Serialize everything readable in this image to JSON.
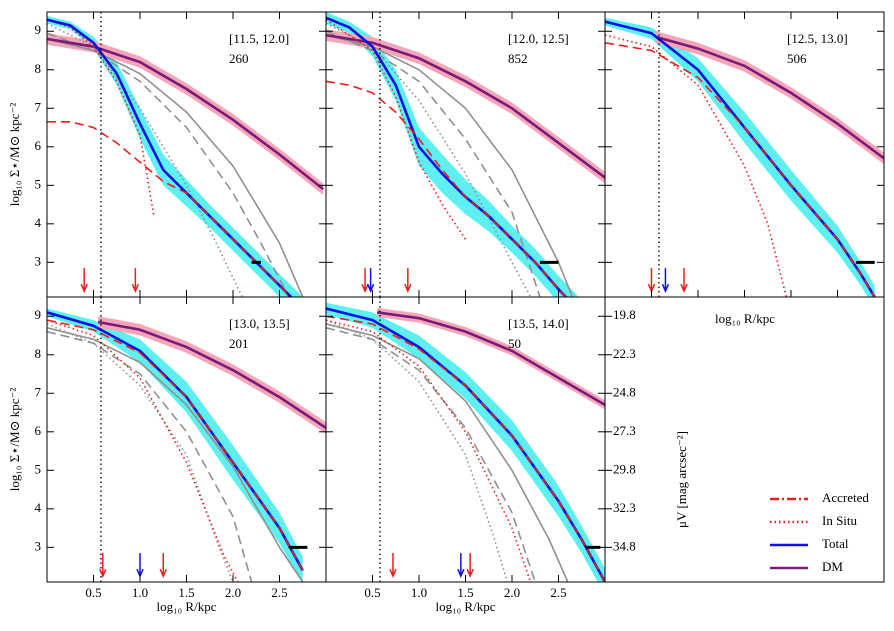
{
  "chart_data": {
    "type": "panels",
    "xlabel": "log₁₀ R/kpc",
    "ylabel": "log₁₀ Σ⋆/M⊙ kpc⁻²",
    "xlim": [
      0,
      3.0
    ],
    "ylim": [
      2.1,
      9.5
    ],
    "xticks": [
      0.5,
      {
        "value": 1,
        "label": "1.0"
      },
      1.5,
      {
        "value": 2,
        "label": "2.0"
      },
      2.5
    ],
    "yticks": [
      3,
      4,
      5,
      6,
      7,
      8,
      9
    ],
    "vline": 0.58,
    "panels": [
      {
        "type": "line",
        "label": "[11.5, 12.0]",
        "count": "260",
        "arrows": [
          {
            "x": 0.4,
            "color": "#e8201c"
          },
          {
            "x": 0.95,
            "color": "#e8201c"
          }
        ],
        "bar": [
          2.2,
          2.3
        ],
        "series": [
          {
            "name": "Accreted",
            "color": "#e8201c",
            "style": "dashed",
            "x": [
              0,
              0.25,
              0.5,
              0.75,
              1.0,
              1.25,
              1.5,
              1.75,
              2.0,
              2.25,
              2.5,
              2.75
            ],
            "values": [
              6.65,
              6.65,
              6.5,
              6.1,
              5.6,
              5.1,
              4.8,
              4.2,
              3.6,
              3.0,
              2.4,
              1.8
            ]
          },
          {
            "name": "In Situ",
            "color": "#e8201c",
            "style": "dotted",
            "x": [
              0,
              0.25,
              0.5,
              0.75,
              1.0,
              1.15
            ],
            "values": [
              9.3,
              9.1,
              8.6,
              7.7,
              6.3,
              4.2
            ]
          },
          {
            "name": "Total",
            "color": "#1010e0",
            "style": "solid",
            "band": "#5ef0f0",
            "x": [
              0,
              0.25,
              0.5,
              0.75,
              1.0,
              1.25,
              1.5,
              1.75,
              2.0,
              2.25,
              2.5,
              2.75
            ],
            "values": [
              9.3,
              9.15,
              8.7,
              7.9,
              6.6,
              5.4,
              4.8,
              4.2,
              3.6,
              3.0,
              2.4,
              1.8
            ],
            "spread": [
              0.1,
              0.1,
              0.15,
              0.3,
              0.4,
              0.4,
              0.35,
              0.3,
              0.3,
              0.3,
              0.3,
              0.3
            ]
          },
          {
            "name": "DM",
            "color": "#7a1a7a",
            "style": "solid",
            "band": "#f4a6b8",
            "x": [
              0,
              0.5,
              1.0,
              1.5,
              2.0,
              2.5,
              2.97
            ],
            "values": [
              8.8,
              8.6,
              8.2,
              7.5,
              6.7,
              5.8,
              4.9
            ],
            "spread": [
              0.15,
              0.15,
              0.15,
              0.15,
              0.15,
              0.15,
              0.15
            ]
          },
          {
            "color": "#909090",
            "style": "dashed",
            "x": [
              0,
              0.5,
              1.0,
              1.5,
              2.0,
              2.3,
              2.6
            ],
            "values": [
              8.95,
              8.5,
              7.7,
              6.5,
              4.8,
              3.5,
              2.1
            ]
          },
          {
            "color": "#909090",
            "style": "solid",
            "x": [
              0,
              0.5,
              1.0,
              1.5,
              2.0,
              2.5,
              2.75
            ],
            "values": [
              8.8,
              8.5,
              7.9,
              6.9,
              5.5,
              3.5,
              2.1
            ]
          },
          {
            "color": "#909090",
            "style": "dotted",
            "x": [
              0,
              0.5,
              1.0,
              1.5,
              1.8,
              2.1
            ],
            "values": [
              9.2,
              8.6,
              7.0,
              5.0,
              3.6,
              2.1
            ]
          }
        ]
      },
      {
        "type": "line",
        "label": "[12.0, 12.5]",
        "count": "852",
        "arrows": [
          {
            "x": 0.42,
            "color": "#e8201c"
          },
          {
            "x": 0.48,
            "color": "#1010e0"
          },
          {
            "x": 0.88,
            "color": "#e8201c"
          }
        ],
        "bar": [
          2.3,
          2.5
        ],
        "series": [
          {
            "name": "Accreted",
            "color": "#e8201c",
            "style": "dashed",
            "x": [
              0,
              0.25,
              0.5,
              0.75,
              1.0,
              1.25,
              1.5,
              1.75,
              2.0,
              2.25,
              2.5,
              2.7
            ],
            "values": [
              7.7,
              7.6,
              7.4,
              6.9,
              6.2,
              5.4,
              4.7,
              4.2,
              3.6,
              3.0,
              2.3,
              1.8
            ]
          },
          {
            "name": "In Situ",
            "color": "#e8201c",
            "style": "dotted",
            "x": [
              0,
              0.5,
              0.75,
              1.0,
              1.25,
              1.5
            ],
            "values": [
              9.3,
              8.5,
              7.3,
              5.6,
              4.5,
              3.6
            ]
          },
          {
            "name": "Total",
            "color": "#1010e0",
            "style": "solid",
            "band": "#5ef0f0",
            "x": [
              0,
              0.25,
              0.5,
              0.75,
              1.0,
              1.25,
              1.5,
              1.75,
              2.0,
              2.25,
              2.5,
              2.7
            ],
            "values": [
              9.35,
              9.1,
              8.6,
              7.6,
              6.0,
              5.3,
              4.7,
              4.2,
              3.6,
              3.0,
              2.3,
              1.8
            ],
            "spread": [
              0.15,
              0.15,
              0.25,
              0.4,
              0.5,
              0.5,
              0.45,
              0.4,
              0.35,
              0.35,
              0.35,
              0.35
            ]
          },
          {
            "name": "DM",
            "color": "#7a1a7a",
            "style": "solid",
            "band": "#f4a6b8",
            "x": [
              0,
              0.5,
              1.0,
              1.5,
              2.0,
              2.5,
              3.0
            ],
            "values": [
              8.9,
              8.7,
              8.3,
              7.7,
              7.0,
              6.1,
              5.2
            ],
            "spread": [
              0.15,
              0.15,
              0.15,
              0.15,
              0.15,
              0.15,
              0.15
            ]
          },
          {
            "color": "#909090",
            "style": "dashed",
            "x": [
              0,
              0.5,
              1.0,
              1.5,
              2.0,
              2.3
            ],
            "values": [
              9.0,
              8.5,
              7.7,
              6.2,
              4.3,
              2.1
            ]
          },
          {
            "color": "#909090",
            "style": "solid",
            "x": [
              0,
              0.5,
              1.0,
              1.5,
              2.0,
              2.5,
              2.65
            ],
            "values": [
              8.9,
              8.6,
              8.0,
              7.0,
              5.4,
              3.0,
              2.1
            ]
          },
          {
            "color": "#909090",
            "style": "dotted",
            "x": [
              0,
              0.5,
              1.0,
              1.5,
              2.0,
              2.2
            ],
            "values": [
              9.2,
              8.6,
              7.2,
              5.3,
              3.0,
              2.1
            ]
          }
        ]
      },
      {
        "type": "line",
        "label": "[12.5, 13.0]",
        "count": "506",
        "arrows": [
          {
            "x": 0.5,
            "color": "#e8201c"
          },
          {
            "x": 0.65,
            "color": "#1010e0"
          },
          {
            "x": 0.85,
            "color": "#e8201c"
          }
        ],
        "bar": [
          2.7,
          2.9
        ],
        "series": [
          {
            "name": "Accreted",
            "color": "#e8201c",
            "style": "dashed",
            "x": [
              0,
              0.5,
              1.0,
              1.5,
              2.0,
              2.5,
              2.75,
              2.9
            ],
            "values": [
              8.7,
              8.5,
              7.8,
              6.5,
              5.0,
              3.6,
              2.7,
              2.1
            ]
          },
          {
            "name": "In Situ",
            "color": "#e8201c",
            "style": "dotted",
            "x": [
              0,
              0.5,
              1.0,
              1.5,
              1.75,
              1.95
            ],
            "values": [
              8.9,
              8.6,
              7.6,
              5.5,
              4.0,
              2.1
            ]
          },
          {
            "name": "Total",
            "color": "#1010e0",
            "style": "solid",
            "band": "#5ef0f0",
            "x": [
              0,
              0.5,
              1.0,
              1.5,
              2.0,
              2.5,
              2.75,
              2.9
            ],
            "values": [
              9.25,
              8.95,
              8.0,
              6.5,
              5.0,
              3.6,
              2.7,
              2.1
            ],
            "spread": [
              0.1,
              0.15,
              0.3,
              0.4,
              0.4,
              0.35,
              0.3,
              0.3
            ]
          },
          {
            "name": "DM",
            "color": "#7a1a7a",
            "style": "solid",
            "band": "#f4a6b8",
            "x": [
              0.55,
              1.0,
              1.5,
              2.0,
              2.5,
              3.0
            ],
            "values": [
              8.85,
              8.55,
              8.1,
              7.4,
              6.6,
              5.7
            ],
            "spread": [
              0.15,
              0.15,
              0.15,
              0.15,
              0.15,
              0.15
            ]
          }
        ]
      },
      {
        "type": "line",
        "label": "[13.0, 13.5]",
        "count": "201",
        "arrows": [
          {
            "x": 0.6,
            "color": "#e8201c"
          },
          {
            "x": 1.0,
            "color": "#1010e0"
          },
          {
            "x": 1.25,
            "color": "#e8201c"
          }
        ],
        "bar": [
          2.6,
          2.8
        ],
        "series": [
          {
            "name": "Accreted",
            "color": "#e8201c",
            "style": "dashed",
            "x": [
              0,
              0.5,
              1.0,
              1.5,
              2.0,
              2.5,
              2.75
            ],
            "values": [
              8.9,
              8.65,
              8.05,
              6.9,
              5.2,
              3.5,
              2.4
            ]
          },
          {
            "name": "In Situ",
            "color": "#e8201c",
            "style": "dotted",
            "x": [
              0,
              0.5,
              1.0,
              1.5,
              1.9,
              2.05
            ],
            "values": [
              8.9,
              8.5,
              7.4,
              5.2,
              2.8,
              2.1
            ]
          },
          {
            "name": "Total",
            "color": "#1010e0",
            "style": "solid",
            "band": "#5ef0f0",
            "x": [
              0,
              0.5,
              1.0,
              1.5,
              2.0,
              2.5,
              2.75
            ],
            "values": [
              9.1,
              8.75,
              8.1,
              6.9,
              5.2,
              3.5,
              2.4
            ],
            "spread": [
              0.1,
              0.15,
              0.3,
              0.4,
              0.45,
              0.4,
              0.35
            ]
          },
          {
            "name": "DM",
            "color": "#7a1a7a",
            "style": "solid",
            "band": "#f4a6b8",
            "x": [
              0.55,
              1.0,
              1.5,
              2.0,
              2.5,
              3.0
            ],
            "values": [
              8.85,
              8.65,
              8.2,
              7.6,
              6.9,
              6.1
            ],
            "spread": [
              0.15,
              0.15,
              0.15,
              0.15,
              0.15,
              0.15
            ]
          },
          {
            "color": "#909090",
            "style": "dashed",
            "x": [
              0,
              0.5,
              1.0,
              1.5,
              2.0,
              2.2
            ],
            "values": [
              8.6,
              8.3,
              7.5,
              6.0,
              3.8,
              2.1
            ]
          },
          {
            "color": "#909090",
            "style": "solid",
            "x": [
              0,
              0.5,
              1.0,
              1.5,
              2.0,
              2.5,
              2.75
            ],
            "values": [
              8.7,
              8.4,
              7.8,
              6.7,
              5.1,
              3.0,
              2.1
            ]
          },
          {
            "color": "#909090",
            "style": "dotted",
            "x": [
              0,
              0.5,
              1.0,
              1.5,
              1.85,
              2.0
            ],
            "values": [
              8.8,
              8.3,
              7.2,
              5.4,
              3.0,
              2.1
            ]
          }
        ]
      },
      {
        "type": "line",
        "label": "[13.5, 14.0]",
        "count": "50",
        "arrows": [
          {
            "x": 0.72,
            "color": "#e8201c"
          },
          {
            "x": 1.45,
            "color": "#1010e0"
          },
          {
            "x": 1.55,
            "color": "#e8201c"
          }
        ],
        "bar": [
          2.8,
          2.95
        ],
        "series": [
          {
            "name": "Accreted",
            "color": "#e8201c",
            "style": "dashed",
            "x": [
              0,
              0.5,
              1.0,
              1.5,
              2.0,
              2.5,
              2.75,
              3.0
            ],
            "values": [
              9.0,
              8.8,
              8.15,
              7.2,
              5.9,
              4.2,
              3.2,
              2.1
            ]
          },
          {
            "name": "In Situ",
            "color": "#e8201c",
            "style": "dotted",
            "x": [
              0,
              0.5,
              1.0,
              1.5,
              2.0,
              2.2
            ],
            "values": [
              8.9,
              8.6,
              7.7,
              6.0,
              3.5,
              2.1
            ]
          },
          {
            "name": "Total",
            "color": "#1010e0",
            "style": "solid",
            "band": "#5ef0f0",
            "x": [
              0,
              0.5,
              1.0,
              1.5,
              2.0,
              2.5,
              2.75,
              3.0
            ],
            "values": [
              9.2,
              8.9,
              8.2,
              7.2,
              5.9,
              4.2,
              3.2,
              2.1
            ],
            "spread": [
              0.15,
              0.2,
              0.3,
              0.35,
              0.4,
              0.4,
              0.35,
              0.35
            ]
          },
          {
            "name": "DM",
            "color": "#7a1a7a",
            "style": "solid",
            "band": "#f4a6b8",
            "x": [
              0.55,
              1.0,
              1.5,
              2.0,
              2.5,
              3.0
            ],
            "values": [
              9.1,
              8.95,
              8.6,
              8.1,
              7.4,
              6.7
            ],
            "spread": [
              0.12,
              0.12,
              0.12,
              0.12,
              0.12,
              0.12
            ]
          },
          {
            "color": "#909090",
            "style": "dashed",
            "x": [
              0,
              0.5,
              1.0,
              1.5,
              2.0,
              2.25
            ],
            "values": [
              8.7,
              8.4,
              7.6,
              6.1,
              3.9,
              2.1
            ]
          },
          {
            "color": "#909090",
            "style": "solid",
            "x": [
              0,
              0.5,
              1.0,
              1.5,
              2.0,
              2.4,
              2.6
            ],
            "values": [
              8.8,
              8.5,
              7.9,
              6.8,
              5.0,
              3.2,
              2.1
            ]
          },
          {
            "color": "#909090",
            "style": "dotted",
            "x": [
              0,
              0.5,
              1.0,
              1.5,
              1.8,
              1.95
            ],
            "values": [
              8.9,
              8.4,
              7.3,
              5.4,
              3.3,
              2.1
            ]
          }
        ]
      }
    ],
    "legend": {
      "corner": "lower right",
      "y2label": "μV [mag arcsec⁻²]",
      "y2lim": [
        37.05,
        18.55
      ],
      "y2ticks": [
        19.8,
        22.3,
        24.8,
        27.3,
        29.8,
        32.3,
        34.8
      ]
    }
  }
}
